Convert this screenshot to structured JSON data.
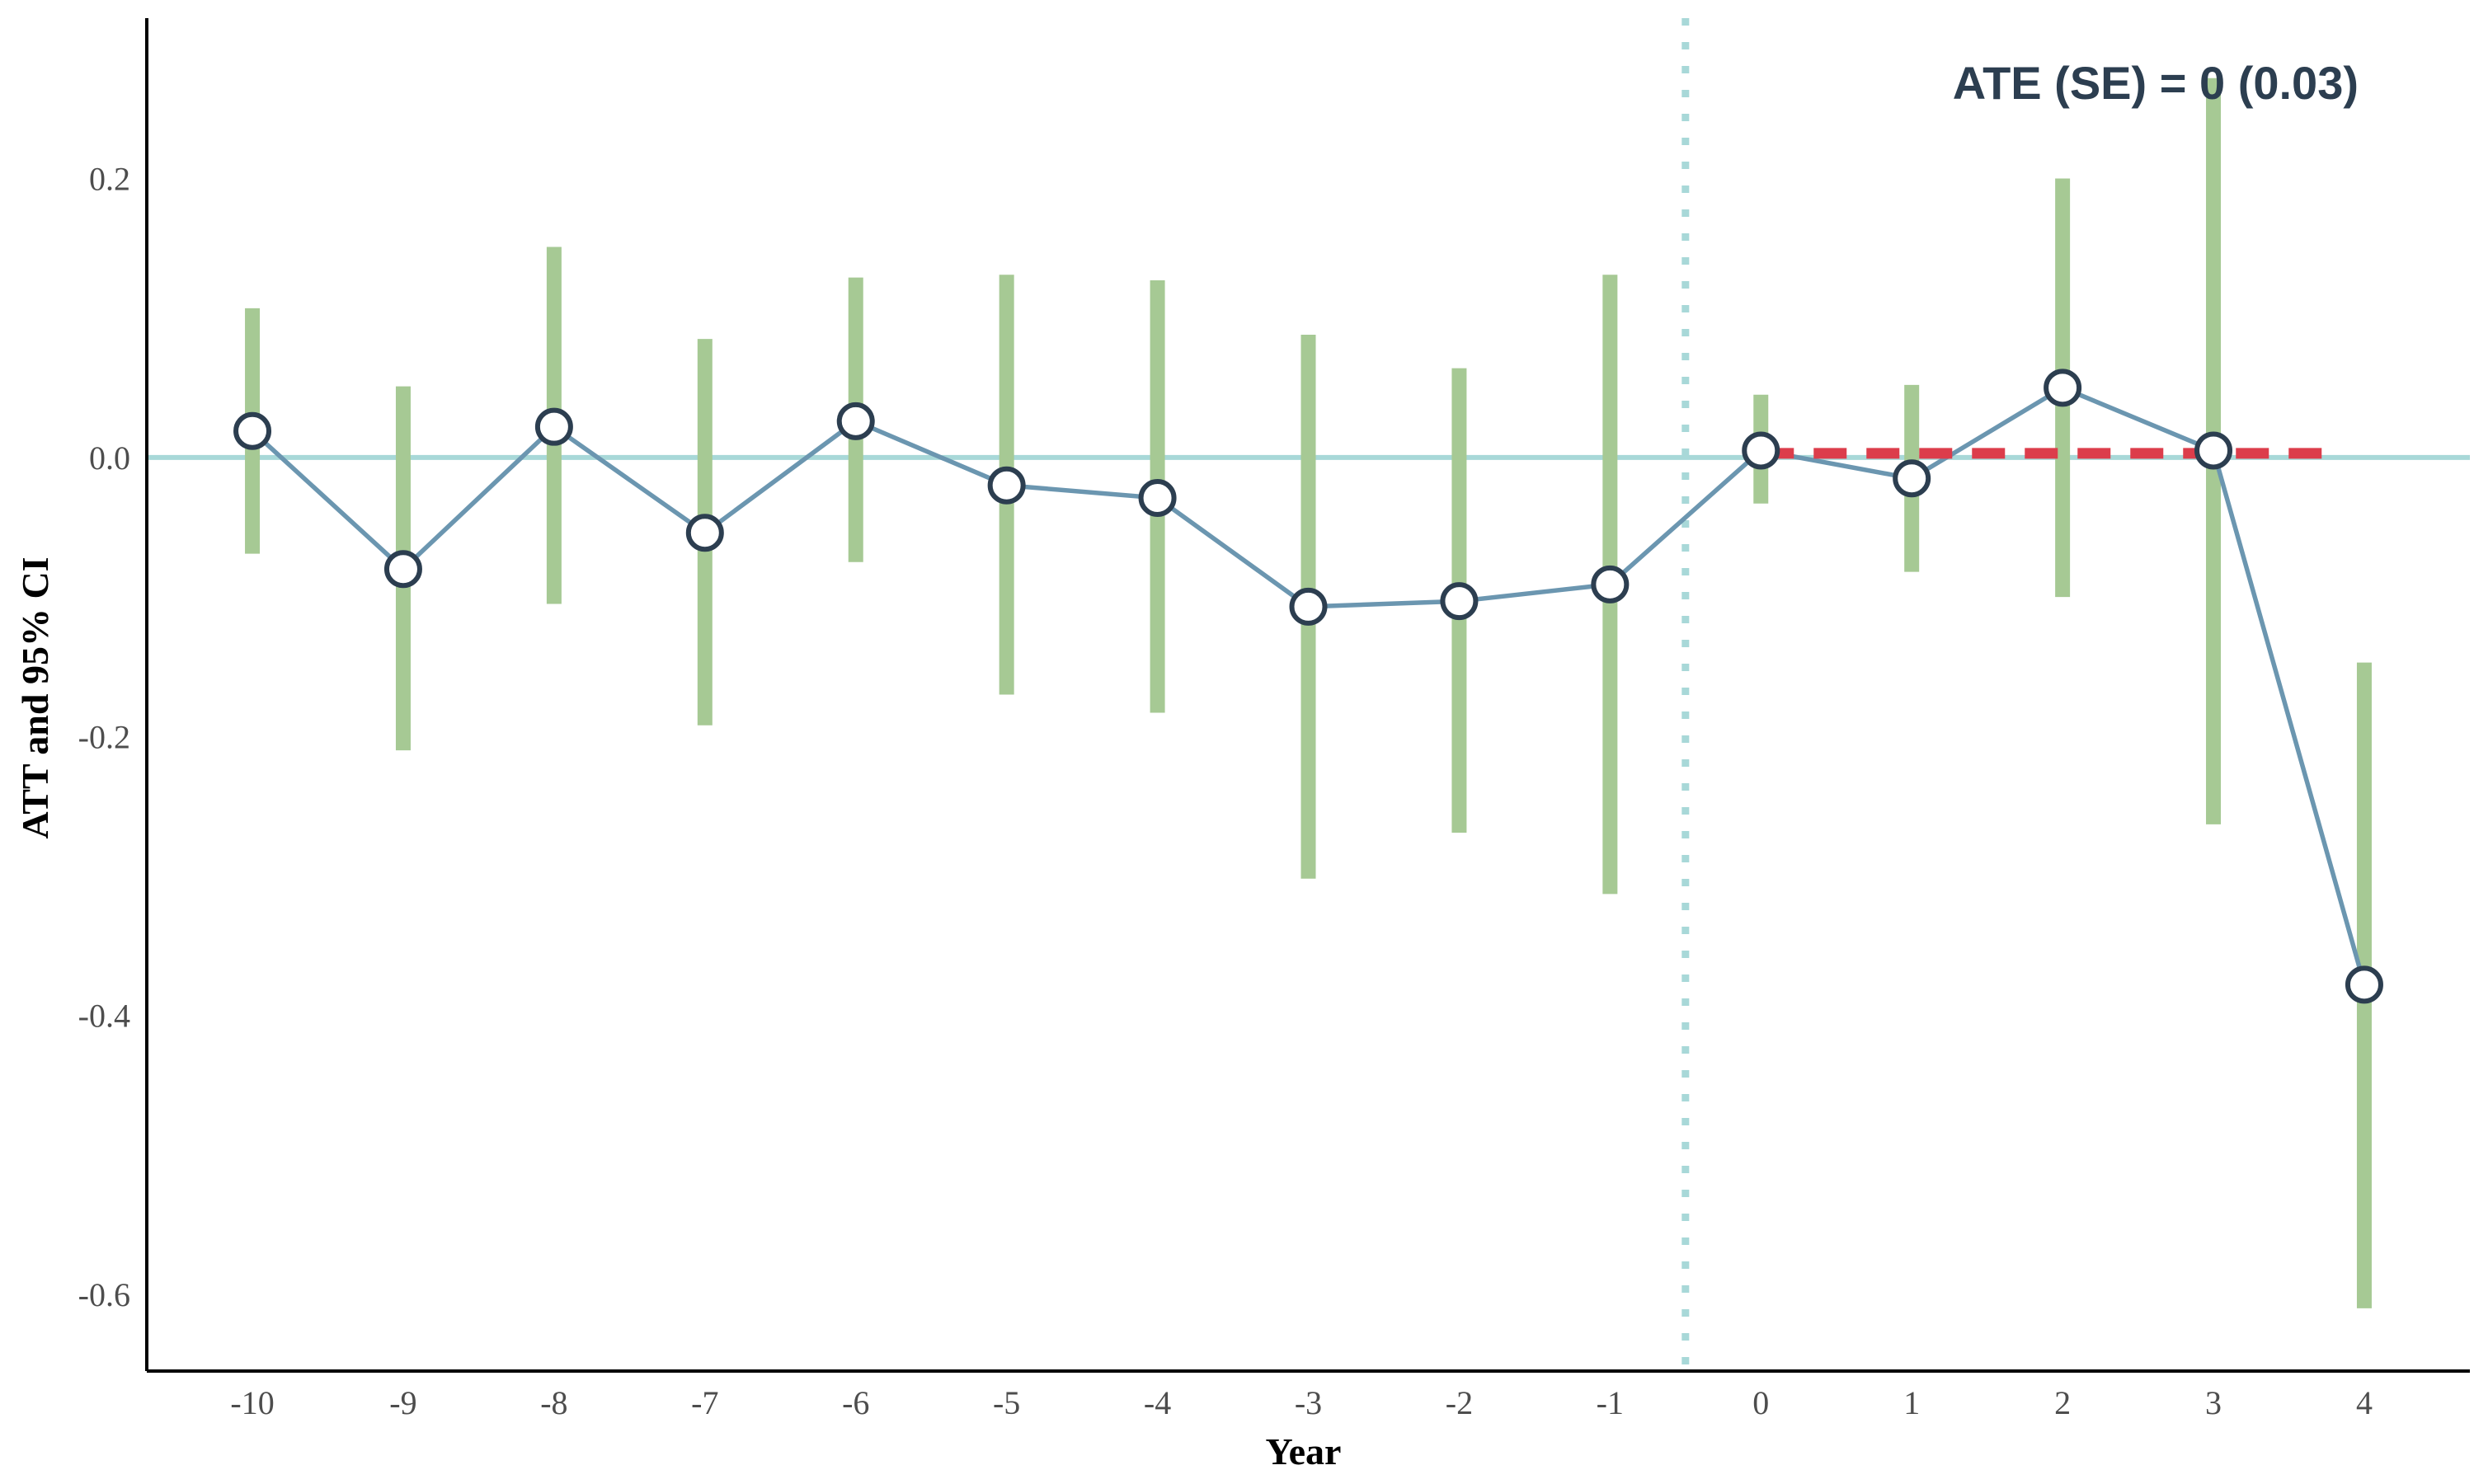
{
  "chart_data": {
    "type": "line",
    "xlabel": "Year",
    "ylabel": "ATT and 95% CI",
    "annotation": "ATE (SE) = 0 (0.03)",
    "x": [
      -10,
      -9,
      -8,
      -7,
      -6,
      -5,
      -4,
      -3,
      -2,
      -1,
      0,
      1,
      2,
      3,
      4
    ],
    "x_tick_labels": [
      "-10",
      "-9",
      "-8",
      "-7",
      "-6",
      "-5",
      "-4",
      "-3",
      "-2",
      "-1",
      "0",
      "1",
      "2",
      "3",
      "4"
    ],
    "series": [
      {
        "values": [
          0.019,
          -0.08,
          0.022,
          -0.054,
          0.026,
          -0.02,
          -0.029,
          -0.107,
          -0.103,
          -0.091,
          0.005,
          -0.015,
          0.05,
          0.005,
          -0.378
        ],
        "ci_lower": [
          -0.069,
          -0.21,
          -0.105,
          -0.192,
          -0.075,
          -0.17,
          -0.183,
          -0.302,
          -0.269,
          -0.313,
          -0.033,
          -0.082,
          -0.1,
          -0.263,
          -0.61
        ],
        "ci_upper": [
          0.107,
          0.051,
          0.151,
          0.085,
          0.129,
          0.131,
          0.127,
          0.088,
          0.064,
          0.131,
          0.045,
          0.052,
          0.2,
          0.272,
          -0.147
        ]
      }
    ],
    "reference_lines": {
      "horizontal_y": 0,
      "vertical_x": -0.5,
      "ate_line": {
        "x_start": 0,
        "x_end": 3.8,
        "y": 0.003
      }
    },
    "ylim": [
      -0.655,
      0.315
    ],
    "xlim": [
      -10.7,
      4.7
    ],
    "y_ticks": [
      0.2,
      0.0,
      -0.2,
      -0.4,
      -0.6
    ],
    "y_tick_labels": [
      "0.2",
      "0.0",
      "-0.2",
      "-0.4",
      "-0.6"
    ],
    "grid": false,
    "colors": {
      "ci_bar": "#a6c994",
      "line": "#6b96b0",
      "marker_fill": "#ffffff",
      "marker_stroke": "#2c3e50",
      "zero_line": "#a8d8d8",
      "vertical_line": "#a8d8d8",
      "ate_line": "#dc3d4b",
      "axis": "#000000",
      "annotation": "#2c3e50"
    }
  }
}
